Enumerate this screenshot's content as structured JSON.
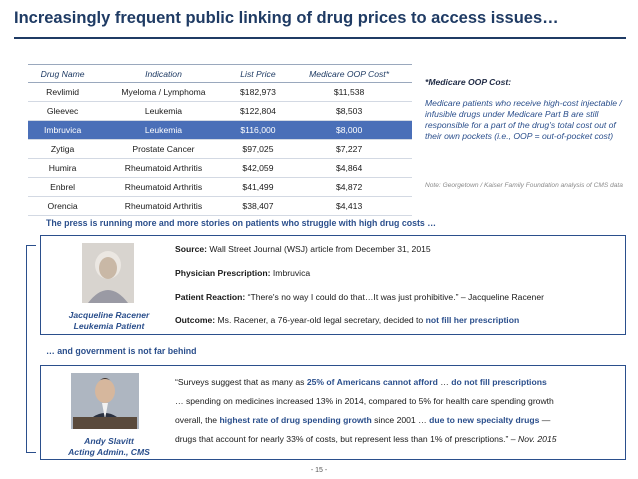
{
  "title": "Increasingly frequent public linking of drug prices to access issues…",
  "table": {
    "headers": [
      "Drug Name",
      "Indication",
      "List Price",
      "Medicare OOP Cost*"
    ],
    "rows": [
      [
        "Revlimid",
        "Myeloma / Lymphoma",
        "$182,973",
        "$11,538"
      ],
      [
        "Gleevec",
        "Leukemia",
        "$122,804",
        "$8,503"
      ],
      [
        "Imbruvica",
        "Leukemia",
        "$116,000",
        "$8,000"
      ],
      [
        "Zytiga",
        "Prostate Cancer",
        "$97,025",
        "$7,227"
      ],
      [
        "Humira",
        "Rheumatoid Arthritis",
        "$42,059",
        "$4,864"
      ],
      [
        "Enbrel",
        "Rheumatoid Arthritis",
        "$41,499",
        "$4,872"
      ],
      [
        "Orencia",
        "Rheumatoid Arthritis",
        "$38,407",
        "$4,413"
      ]
    ],
    "highlight_color": "#4a6fb8"
  },
  "note": {
    "title": "*Medicare OOP Cost:",
    "body": "Medicare patients who receive high-cost injectable / infusible drugs under Medicare Part B are still responsible for a part of the drug's total cost out of their own pockets (i.e., OOP = out-of-pocket cost)",
    "source": "Note: Georgetown / Kaiser Family Foundation analysis of CMS data"
  },
  "section1": {
    "heading": "The press is running more and more stories on patients who struggle with high drug costs …",
    "caption_name": "Jacqueline Racener",
    "caption_role": "Leukemia Patient",
    "source_label": "Source:",
    "source_text": "Wall Street Journal (WSJ) article from December 31, 2015",
    "rx_label": "Physician Prescription:",
    "rx_text": "Imbruvica",
    "reaction_label": "Patient Reaction:",
    "reaction_text": "“There's no way I could do that…It was just prohibitive.” – Jacqueline Racener",
    "outcome_label": "Outcome:",
    "outcome_text": "Ms. Racener, a 76-year-old legal secretary, decided to",
    "outcome_emph": "not fill her prescription"
  },
  "section2": {
    "heading": "… and government is not far behind",
    "caption_name": "Andy Slavitt",
    "caption_role": "Acting Admin., CMS",
    "q1a": "“Surveys suggest that as many as",
    "q1b": "25% of Americans cannot afford",
    "q1c": "…",
    "q1d": "do not fill prescriptions",
    "q2": "… spending on medicines increased 13% in 2014, compared to 5% for health care spending growth",
    "q3a": "overall, the",
    "q3b": "highest rate of drug spending growth",
    "q3c": "since 2001 …",
    "q3d": "due to new specialty drugs",
    "q3e": "—",
    "q4a": "drugs that account for nearly 33% of costs, but represent less than 1% of prescriptions.” –",
    "q4b": "Nov. 2015"
  },
  "page_number": "- 15 -"
}
